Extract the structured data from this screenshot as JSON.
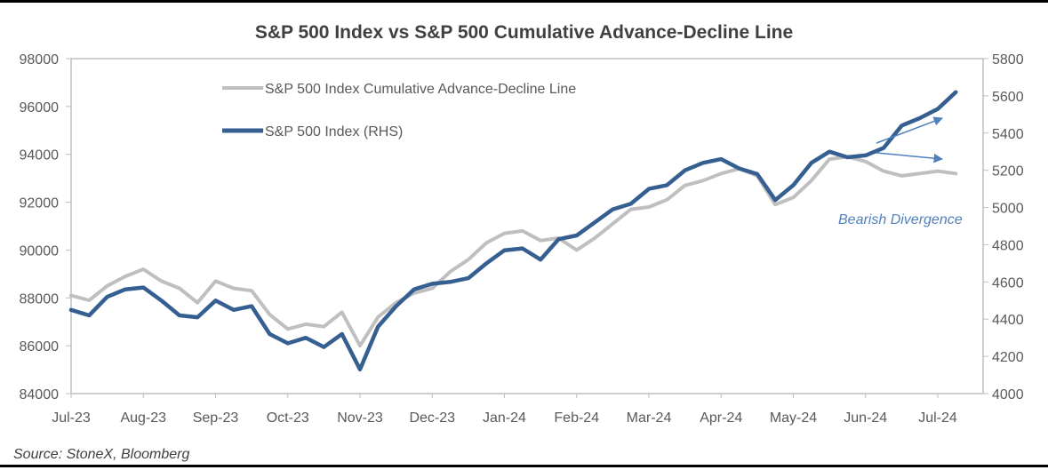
{
  "chart_data": {
    "type": "line",
    "title": "S&P 500 Index vs S&P 500 Cumulative Advance-Decline Line",
    "source": "Source: StoneX, Bloomberg",
    "annotation": "Bearish Divergence",
    "x_categories": [
      "Jul-23",
      "Aug-23",
      "Sep-23",
      "Oct-23",
      "Nov-23",
      "Dec-23",
      "Jan-24",
      "Feb-24",
      "Mar-24",
      "Apr-24",
      "May-24",
      "Jun-24",
      "Jul-24"
    ],
    "left_axis": {
      "min": 84000,
      "max": 98000,
      "ticks": [
        "84000",
        "86000",
        "88000",
        "90000",
        "92000",
        "94000",
        "96000",
        "98000"
      ]
    },
    "right_axis": {
      "min": 4000,
      "max": 5800,
      "ticks": [
        "4000",
        "4200",
        "4400",
        "4600",
        "4800",
        "5000",
        "5200",
        "5400",
        "5600",
        "5800"
      ]
    },
    "grid": false,
    "legend_position": "top-left",
    "colors": {
      "ad_line": "#bfbfbf",
      "spx": "#365f91",
      "annotation": "#4f81bd",
      "axis": "#bfbfbf",
      "text": "#595959"
    },
    "series": [
      {
        "name": "S&P 500 Index Cumulative Advance-Decline Line",
        "axis": "left",
        "x": [
          0,
          0.25,
          0.5,
          0.75,
          1,
          1.25,
          1.5,
          1.75,
          2,
          2.25,
          2.5,
          2.75,
          3,
          3.25,
          3.5,
          3.75,
          4,
          4.25,
          4.5,
          4.75,
          5,
          5.25,
          5.5,
          5.75,
          6,
          6.25,
          6.5,
          6.75,
          7,
          7.25,
          7.5,
          7.75,
          8,
          8.25,
          8.5,
          8.75,
          9,
          9.25,
          9.5,
          9.75,
          10,
          10.25,
          10.5,
          10.75,
          11,
          11.25,
          11.5,
          11.75,
          12,
          12.25
        ],
        "values": [
          88100,
          87900,
          88500,
          88900,
          89200,
          88700,
          88400,
          87800,
          88700,
          88400,
          88300,
          87300,
          86700,
          86900,
          86800,
          87400,
          86000,
          87200,
          87800,
          88200,
          88400,
          89100,
          89600,
          90300,
          90700,
          90800,
          90400,
          90500,
          90000,
          90500,
          91100,
          91700,
          91800,
          92100,
          92700,
          92900,
          93200,
          93400,
          93100,
          91900,
          92200,
          92900,
          93800,
          93900,
          93700,
          93300,
          93100,
          93200,
          93300,
          93200
        ]
      },
      {
        "name": "S&P 500 Index (RHS)",
        "axis": "right",
        "x": [
          0,
          0.25,
          0.5,
          0.75,
          1,
          1.25,
          1.5,
          1.75,
          2,
          2.25,
          2.5,
          2.75,
          3,
          3.25,
          3.5,
          3.75,
          4,
          4.25,
          4.5,
          4.75,
          5,
          5.25,
          5.5,
          5.75,
          6,
          6.25,
          6.5,
          6.75,
          7,
          7.25,
          7.5,
          7.75,
          8,
          8.25,
          8.5,
          8.75,
          9,
          9.25,
          9.5,
          9.75,
          10,
          10.25,
          10.5,
          10.75,
          11,
          11.25,
          11.5,
          11.75,
          12,
          12.25
        ],
        "values": [
          4450,
          4420,
          4520,
          4560,
          4570,
          4500,
          4420,
          4410,
          4500,
          4450,
          4470,
          4320,
          4270,
          4300,
          4250,
          4320,
          4130,
          4360,
          4470,
          4560,
          4590,
          4600,
          4620,
          4700,
          4770,
          4780,
          4720,
          4830,
          4850,
          4920,
          4990,
          5020,
          5100,
          5120,
          5200,
          5240,
          5260,
          5210,
          5180,
          5040,
          5120,
          5240,
          5300,
          5270,
          5280,
          5320,
          5440,
          5480,
          5530,
          5620
        ]
      }
    ]
  }
}
